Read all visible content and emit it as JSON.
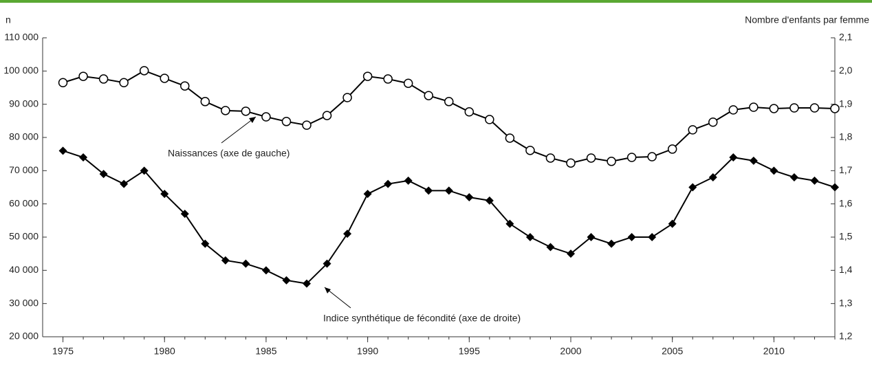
{
  "chart_data": {
    "type": "line",
    "y_label": "n",
    "y2_label": "Nombre d'enfants par femme",
    "x": [
      1975,
      1976,
      1977,
      1978,
      1979,
      1980,
      1981,
      1982,
      1983,
      1984,
      1985,
      1986,
      1987,
      1988,
      1989,
      1990,
      1991,
      1992,
      1993,
      1994,
      1995,
      1996,
      1997,
      1998,
      1999,
      2000,
      2001,
      2002,
      2003,
      2004,
      2005,
      2006,
      2007,
      2008,
      2009,
      2010,
      2011,
      2012,
      2013
    ],
    "xlim": [
      1974,
      2013
    ],
    "xticks": [
      1975,
      1980,
      1985,
      1990,
      1995,
      2000,
      2005,
      2010
    ],
    "ylim": [
      20000,
      110000
    ],
    "yticks": [
      {
        "value": 20000,
        "label": "20 000"
      },
      {
        "value": 30000,
        "label": "30 000"
      },
      {
        "value": 40000,
        "label": "40 000"
      },
      {
        "value": 50000,
        "label": "50 000"
      },
      {
        "value": 60000,
        "label": "60 000"
      },
      {
        "value": 70000,
        "label": "70 000"
      },
      {
        "value": 80000,
        "label": "80 000"
      },
      {
        "value": 90000,
        "label": "90 000"
      },
      {
        "value": 100000,
        "label": "100 000"
      },
      {
        "value": 110000,
        "label": "110 000"
      }
    ],
    "y2lim": [
      1.2,
      2.1
    ],
    "y2ticks": [
      {
        "value": 1.2,
        "label": "1,2"
      },
      {
        "value": 1.3,
        "label": "1,3"
      },
      {
        "value": 1.4,
        "label": "1,4"
      },
      {
        "value": 1.5,
        "label": "1,5"
      },
      {
        "value": 1.6,
        "label": "1,6"
      },
      {
        "value": 1.7,
        "label": "1,7"
      },
      {
        "value": 1.8,
        "label": "1,8"
      },
      {
        "value": 1.9,
        "label": "1,9"
      },
      {
        "value": 2.0,
        "label": "2,0"
      },
      {
        "value": 2.1,
        "label": "2,1"
      }
    ],
    "series": [
      {
        "name": "Naissances (axe de gauche)",
        "color": "#000000",
        "marker": "circle",
        "values": [
          96500,
          98400,
          97600,
          96500,
          100100,
          97800,
          95500,
          90800,
          88100,
          87900,
          86200,
          84800,
          83700,
          86600,
          92000,
          98400,
          97600,
          96300,
          92600,
          90800,
          87700,
          85400,
          79800,
          76100,
          73800,
          72300,
          73800,
          72800,
          74000,
          74200,
          76500,
          82300,
          84600,
          88300,
          89100,
          88700,
          88900,
          88900,
          88700
        ]
      },
      {
        "name": "Indice synthétique de fécondité (axe de droite)",
        "color": "#000000",
        "marker": "diamond",
        "axis": "y2",
        "values": [
          1.76,
          1.74,
          1.69,
          1.66,
          1.7,
          1.63,
          1.57,
          1.48,
          1.43,
          1.42,
          1.4,
          1.37,
          1.36,
          1.42,
          1.51,
          1.63,
          1.66,
          1.67,
          1.64,
          1.64,
          1.62,
          1.61,
          1.54,
          1.5,
          1.47,
          1.45,
          1.5,
          1.48,
          1.5,
          1.5,
          1.54,
          1.65,
          1.68,
          1.74,
          1.73,
          1.7,
          1.68,
          1.67,
          1.65
        ]
      }
    ]
  }
}
